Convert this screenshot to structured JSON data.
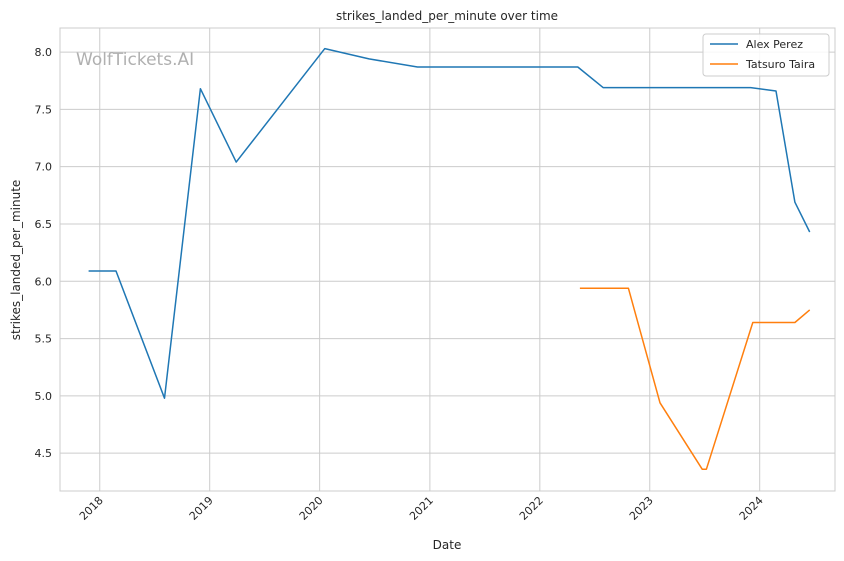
{
  "chart_data": {
    "type": "line",
    "title": "strikes_landed_per_minute over time",
    "xlabel": "Date",
    "ylabel": "strikes_landed_per_minute",
    "watermark": "WolfTickets.AI",
    "x_ticks": [
      "2018",
      "2019",
      "2020",
      "2021",
      "2022",
      "2023",
      "2024"
    ],
    "y_ticks": [
      "4.5",
      "5.0",
      "5.5",
      "6.0",
      "6.5",
      "7.0",
      "7.5",
      "8.0"
    ],
    "ylim": [
      4.17,
      8.21
    ],
    "xlim": [
      "2017-08-22",
      "2024-09-07"
    ],
    "grid": true,
    "legend_position": "top-right",
    "series": [
      {
        "name": "Alex Perez",
        "color": "#1f77b4",
        "points": [
          {
            "x": "2017-11-25",
            "y": 6.09
          },
          {
            "x": "2018-02-24",
            "y": 6.09
          },
          {
            "x": "2018-08-04",
            "y": 4.98
          },
          {
            "x": "2018-12-01",
            "y": 7.68
          },
          {
            "x": "2019-03-30",
            "y": 7.04
          },
          {
            "x": "2020-01-18",
            "y": 8.03
          },
          {
            "x": "2020-06-13",
            "y": 7.94
          },
          {
            "x": "2020-11-21",
            "y": 7.87
          },
          {
            "x": "2022-05-07",
            "y": 7.87
          },
          {
            "x": "2022-07-30",
            "y": 7.69
          },
          {
            "x": "2023-12-02",
            "y": 7.69
          },
          {
            "x": "2024-02-24",
            "y": 7.66
          },
          {
            "x": "2024-04-27",
            "y": 6.69
          },
          {
            "x": "2024-06-15",
            "y": 6.43
          }
        ]
      },
      {
        "name": "Tatsuro Taira",
        "color": "#ff7f0e",
        "points": [
          {
            "x": "2022-05-14",
            "y": 5.94
          },
          {
            "x": "2022-10-22",
            "y": 5.94
          },
          {
            "x": "2023-02-04",
            "y": 4.94
          },
          {
            "x": "2023-06-24",
            "y": 4.36
          },
          {
            "x": "2023-07-08",
            "y": 4.36
          },
          {
            "x": "2023-12-09",
            "y": 5.64
          },
          {
            "x": "2024-04-27",
            "y": 5.64
          },
          {
            "x": "2024-06-15",
            "y": 5.75
          }
        ]
      }
    ]
  }
}
